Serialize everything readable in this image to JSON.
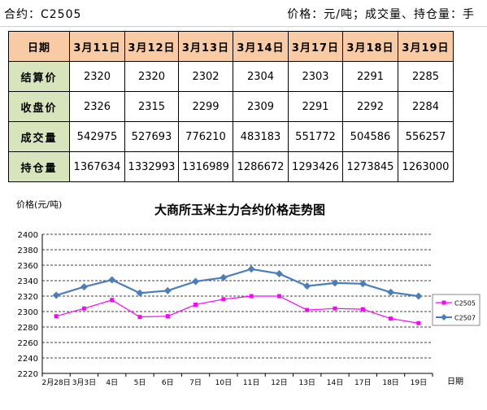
{
  "header": {
    "left": "合约：C2505",
    "right": "价格：元/吨；成交量、持仓量：手"
  },
  "table": {
    "corner": "日期",
    "columns": [
      "3月11日",
      "3月12日",
      "3月13日",
      "3月14日",
      "3月17日",
      "3月18日",
      "3月19日"
    ],
    "rows": [
      {
        "label": "结算价",
        "values": [
          "2320",
          "2320",
          "2302",
          "2304",
          "2303",
          "2291",
          "2285"
        ]
      },
      {
        "label": "收盘价",
        "values": [
          "2326",
          "2315",
          "2299",
          "2309",
          "2291",
          "2292",
          "2284"
        ]
      },
      {
        "label": "成交量",
        "values": [
          "542975",
          "527693",
          "776210",
          "483183",
          "551772",
          "504586",
          "556257"
        ]
      },
      {
        "label": "持仓量",
        "values": [
          "1367634",
          "1332993",
          "1316989",
          "1286672",
          "1293426",
          "1273845",
          "1263000"
        ]
      }
    ]
  },
  "chart_data": {
    "type": "line",
    "title": "大商所玉米主力合约价格走势图",
    "ylabel": "价格(元/吨)",
    "xlabel": "日期",
    "categories": [
      "2月28日",
      "3月3日",
      "4日",
      "5日",
      "6日",
      "7日",
      "10日",
      "11日",
      "12日",
      "13日",
      "14日",
      "17日",
      "18日",
      "19日"
    ],
    "ylim": [
      2220,
      2400
    ],
    "yticks": [
      2220,
      2240,
      2260,
      2280,
      2300,
      2320,
      2340,
      2360,
      2380,
      2400
    ],
    "grid": true,
    "legend_position": "right",
    "series": [
      {
        "name": "C2505",
        "color": "#ff00ff",
        "marker": "square",
        "values": [
          2294,
          2304,
          2315,
          2293,
          2294,
          2309,
          2316,
          2320,
          2320,
          2302,
          2304,
          2303,
          2291,
          2285
        ]
      },
      {
        "name": "C2507",
        "color": "#4a7ebb",
        "marker": "diamond",
        "values": [
          2321,
          2332,
          2341,
          2324,
          2327,
          2339,
          2344,
          2355,
          2349,
          2333,
          2337,
          2336,
          2325,
          2320
        ]
      }
    ]
  }
}
